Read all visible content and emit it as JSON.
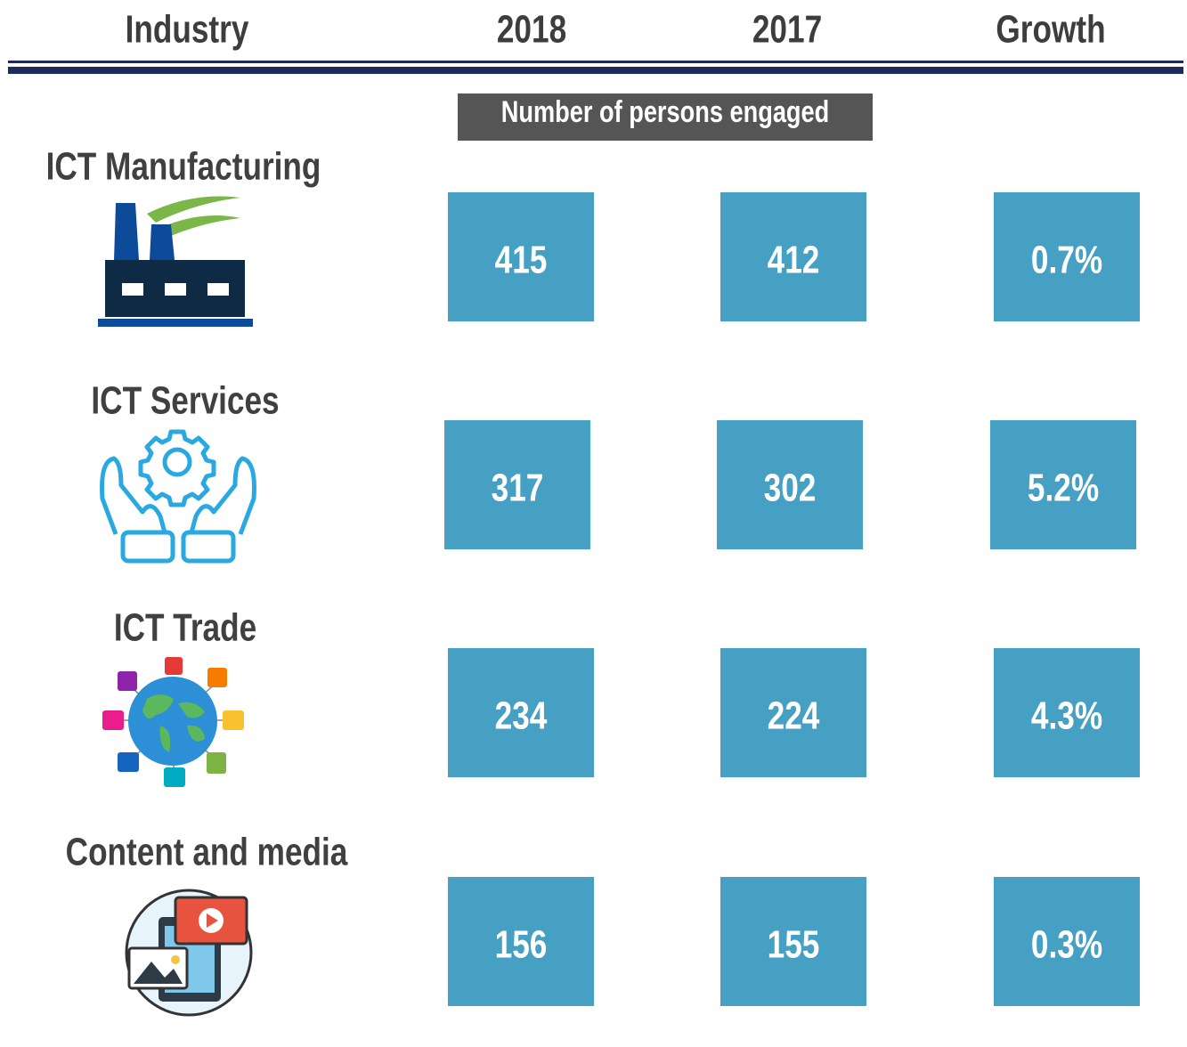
{
  "header": {
    "columns": [
      "Industry",
      "2018",
      "2017",
      "Growth"
    ],
    "subtitle": "Number of persons  engaged"
  },
  "table": {
    "rows": [
      [
        "ICT Manufacturing",
        "415",
        "412",
        "0.7%"
      ],
      [
        "ICT Services",
        "317",
        "302",
        "5.2%"
      ],
      [
        "ICT Trade",
        "234",
        "224",
        "4.3%"
      ],
      [
        "Content and media",
        "156",
        "155",
        "0.3%"
      ]
    ]
  }
}
